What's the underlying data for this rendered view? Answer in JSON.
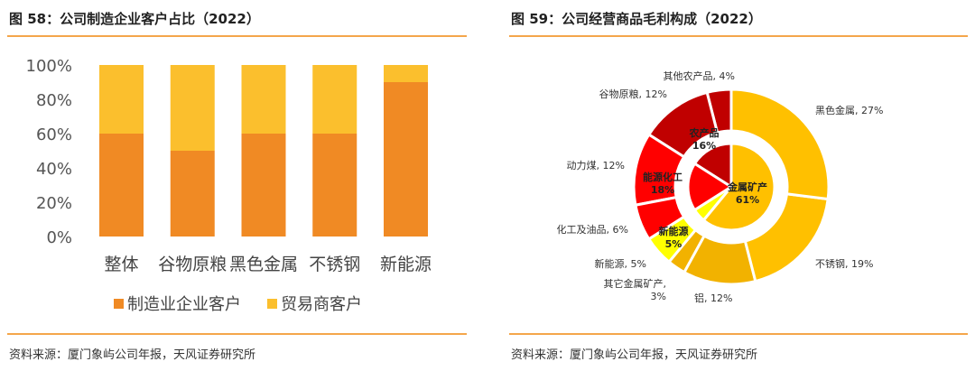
{
  "left": {
    "title": "图 58：公司制造企业客户占比（2022）",
    "source": "资料来源：厦门象屿公司年报，天风证券研究所"
  },
  "right": {
    "title": "图 59：公司经营商品毛利构成（2022）",
    "source": "资料来源：厦门象屿公司年报，天风证券研究所"
  },
  "chart_data": [
    {
      "type": "bar",
      "stacked": true,
      "categories": [
        "整体",
        "谷物原粮",
        "黑色金属",
        "不锈钢",
        "新能源"
      ],
      "series": [
        {
          "name": "制造业企业客户",
          "values": [
            60,
            50,
            60,
            60,
            90
          ],
          "color": "#f08a24"
        },
        {
          "name": "贸易商客户",
          "values": [
            40,
            50,
            40,
            40,
            10
          ],
          "color": "#fbbf2d"
        }
      ],
      "ylim": [
        0,
        100
      ],
      "yticks": [
        "0%",
        "20%",
        "40%",
        "60%",
        "80%",
        "100%"
      ],
      "legend": "bottom",
      "grid": false
    },
    {
      "type": "pie",
      "variant": "sunburst",
      "inner": [
        {
          "label": "农产品",
          "value": 16,
          "text": "农产品\n16%",
          "color": "#c00000"
        },
        {
          "label": "能源化工",
          "value": 18,
          "text": "能源化工\n18%",
          "color": "#ff0000"
        },
        {
          "label": "新能源",
          "value": 5,
          "text": "新能源\n5%",
          "color": "#ffff00"
        },
        {
          "label": "金属矿产",
          "value": 61,
          "text": "金属矿产\n61%",
          "color": "#ffc000"
        }
      ],
      "outer": [
        {
          "label": "其他农产品, 4%",
          "value": 4,
          "color": "#c00000"
        },
        {
          "label": "谷物原粮, 12%",
          "value": 12,
          "color": "#c00000"
        },
        {
          "label": "动力煤, 12%",
          "value": 12,
          "color": "#ff0000"
        },
        {
          "label": "化工及油品, 6%",
          "value": 6,
          "color": "#ff0000"
        },
        {
          "label": "新能源, 5%",
          "value": 5,
          "color": "#ffff00"
        },
        {
          "label": "其它金属矿产,\n3%",
          "value": 3,
          "color": "#f2b200"
        },
        {
          "label": "铝, 12%",
          "value": 12,
          "color": "#f2b200"
        },
        {
          "label": "不锈钢, 19%",
          "value": 19,
          "color": "#ffc000"
        },
        {
          "label": "黑色金属, 27%",
          "value": 27,
          "color": "#ffc000"
        }
      ]
    }
  ]
}
